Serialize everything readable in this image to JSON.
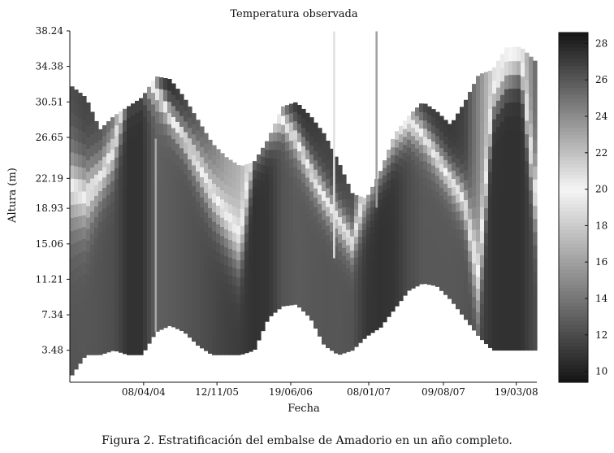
{
  "chart_data": {
    "type": "heatmap",
    "title": "Temperatura observada",
    "xlabel": "Fecha",
    "ylabel": "Altura (m)",
    "x_tick_labels": [
      "08/04/04",
      "12/11/05",
      "19/06/06",
      "08/01/07",
      "09/08/07",
      "19/03/08"
    ],
    "y_tick_labels": [
      "3.48",
      "7.34",
      "11.21",
      "15.06",
      "18.93",
      "22.19",
      "26.65",
      "30.51",
      "34.38",
      "38.24"
    ],
    "y_ticks": [
      3.48,
      7.34,
      11.21,
      15.06,
      18.93,
      22.19,
      26.65,
      30.51,
      34.38,
      38.24
    ],
    "ylim": [
      0,
      38.24
    ],
    "colorbar": {
      "ticks": [
        10,
        12,
        14,
        16,
        18,
        20,
        22,
        24,
        26,
        28
      ],
      "range": [
        9.4,
        28.6
      ],
      "colormap": "gray-diverging-light-at-20"
    },
    "columns": [
      {
        "top": 32.2,
        "bottom": 0.8,
        "warm": 0.78,
        "therm": 21.0,
        "spread": 7.0
      },
      {
        "top": 31.0,
        "bottom": 3.0,
        "warm": 0.8,
        "therm": 20.0,
        "spread": 6.0
      },
      {
        "top": 27.5,
        "bottom": 3.0,
        "warm": 0.75,
        "therm": 22.0,
        "spread": 4.0
      },
      {
        "top": 29.0,
        "bottom": 3.5,
        "warm": 0.65,
        "therm": 25.0,
        "spread": 4.0
      },
      {
        "top": 30.0,
        "bottom": 3.0,
        "warm": 0.12,
        "therm": 32.0,
        "spread": 3.0
      },
      {
        "top": 31.0,
        "bottom": 3.0,
        "warm": 0.12,
        "therm": 33.0,
        "spread": 3.0
      },
      {
        "top": 33.3,
        "bottom": 5.5,
        "warm": 1.0,
        "therm": 32.0,
        "spread": 3.0
      },
      {
        "top": 33.0,
        "bottom": 6.2,
        "warm": 0.9,
        "therm": 29.0,
        "spread": 2.5
      },
      {
        "top": 31.0,
        "bottom": 5.5,
        "warm": 0.8,
        "therm": 26.5,
        "spread": 2.5
      },
      {
        "top": 28.5,
        "bottom": 4.0,
        "warm": 0.7,
        "therm": 23.5,
        "spread": 3.5
      },
      {
        "top": 26.0,
        "bottom": 3.0,
        "warm": 0.55,
        "therm": 20.0,
        "spread": 4.0
      },
      {
        "top": 24.5,
        "bottom": 3.0,
        "warm": 0.4,
        "therm": 17.0,
        "spread": 4.5
      },
      {
        "top": 23.5,
        "bottom": 3.0,
        "warm": 0.3,
        "therm": 14.0,
        "spread": 5.0
      },
      {
        "top": 24.0,
        "bottom": 3.5,
        "warm": 0.12,
        "therm": 25.0,
        "spread": 3.0
      },
      {
        "top": 26.5,
        "bottom": 7.0,
        "warm": 0.18,
        "therm": 27.0,
        "spread": 3.0
      },
      {
        "top": 30.0,
        "bottom": 8.3,
        "warm": 0.75,
        "therm": 28.5,
        "spread": 2.5
      },
      {
        "top": 30.5,
        "bottom": 8.5,
        "warm": 0.9,
        "therm": 26.5,
        "spread": 3.0
      },
      {
        "top": 29.0,
        "bottom": 7.0,
        "warm": 0.85,
        "therm": 23.0,
        "spread": 3.0
      },
      {
        "top": 27.0,
        "bottom": 4.0,
        "warm": 0.8,
        "therm": 20.0,
        "spread": 3.0
      },
      {
        "top": 24.0,
        "bottom": 3.0,
        "warm": 0.8,
        "therm": 17.5,
        "spread": 3.0
      },
      {
        "top": 20.5,
        "bottom": 3.5,
        "warm": 0.75,
        "therm": 15.0,
        "spread": 3.0
      },
      {
        "top": 20.0,
        "bottom": 5.0,
        "warm": 0.2,
        "therm": 20.0,
        "spread": 4.0
      },
      {
        "top": 23.0,
        "bottom": 6.0,
        "warm": 0.12,
        "therm": 23.0,
        "spread": 3.0
      },
      {
        "top": 27.0,
        "bottom": 8.0,
        "warm": 0.2,
        "therm": 26.0,
        "spread": 3.0
      },
      {
        "top": 29.0,
        "bottom": 10.0,
        "warm": 0.6,
        "therm": 28.0,
        "spread": 3.0
      },
      {
        "top": 30.5,
        "bottom": 10.8,
        "warm": 0.85,
        "therm": 27.0,
        "spread": 3.0
      },
      {
        "top": 29.5,
        "bottom": 10.5,
        "warm": 0.85,
        "therm": 24.5,
        "spread": 3.0
      },
      {
        "top": 28.0,
        "bottom": 9.0,
        "warm": 0.85,
        "therm": 22.0,
        "spread": 3.0
      },
      {
        "top": 30.5,
        "bottom": 7.0,
        "warm": 0.8,
        "therm": 19.5,
        "spread": 3.5
      },
      {
        "top": 33.5,
        "bottom": 5.0,
        "warm": 0.5,
        "therm": 10.0,
        "spread": 8.0
      },
      {
        "top": 34.0,
        "bottom": 3.5,
        "warm": 0.15,
        "therm": 30.0,
        "spread": 3.0
      },
      {
        "top": 36.5,
        "bottom": 3.5,
        "warm": 0.1,
        "therm": 33.0,
        "spread": 3.0
      },
      {
        "top": 36.5,
        "bottom": 3.5,
        "warm": 0.1,
        "therm": 34.0,
        "spread": 3.0
      },
      {
        "top": 35.0,
        "bottom": 3.5,
        "warm": 0.6,
        "therm": 20.0,
        "spread": 6.0
      }
    ],
    "vertical_streaks": [
      {
        "col": 6.0,
        "top": 26.5,
        "bottom": 5.5,
        "temp": 23
      },
      {
        "col": 18.6,
        "top": 38.2,
        "bottom": 13.5,
        "temp": 19
      },
      {
        "col": 21.6,
        "top": 38.2,
        "bottom": 19.0,
        "temp": 16
      }
    ]
  },
  "caption": "Figura 2. Estratificación del embalse de Amadorio en un año completo."
}
